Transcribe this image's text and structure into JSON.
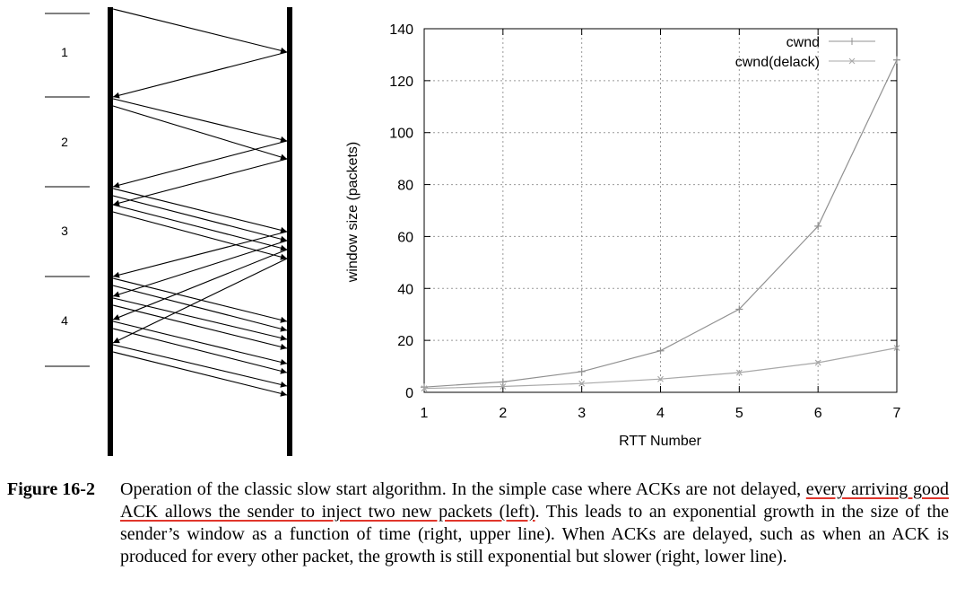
{
  "chart_data": [
    {
      "type": "diagram",
      "round_labels": [
        "1",
        "2",
        "3",
        "4"
      ]
    },
    {
      "type": "line",
      "xlabel": "RTT Number",
      "ylabel": "window size (packets)",
      "xlim": [
        1,
        7
      ],
      "ylim": [
        0,
        140
      ],
      "xticks": [
        "1",
        "2",
        "3",
        "4",
        "5",
        "6",
        "7"
      ],
      "yticks": [
        "0",
        "20",
        "40",
        "60",
        "80",
        "100",
        "120",
        "140"
      ],
      "grid": true,
      "legend_position": "top-right",
      "x": [
        1,
        2,
        3,
        4,
        5,
        6,
        7
      ],
      "series": [
        {
          "name": "cwnd",
          "values": [
            2,
            4,
            8,
            16,
            32,
            64,
            128
          ],
          "color": "#909090",
          "marker": "plus"
        },
        {
          "name": "cwnd(delack)",
          "values": [
            1.5,
            2.25,
            3.4,
            5.1,
            7.6,
            11.4,
            17.1
          ],
          "color": "#a8a8a8",
          "marker": "x"
        }
      ]
    }
  ],
  "caption": {
    "label": "Figure 16-2",
    "intro": "Operation of the classic slow start algorithm. In the simple case where ACKs are not delayed, ",
    "underlined": "every arriving good ACK allows the sender to inject two new packets (left)",
    "rest": ". This leads to an exponential growth in the size of the sender’s window as a function of time (right, upper line). When ACKs are delayed, such as when an ACK is produced for every other packet, the growth is still exponential but slower (right, lower line)."
  }
}
